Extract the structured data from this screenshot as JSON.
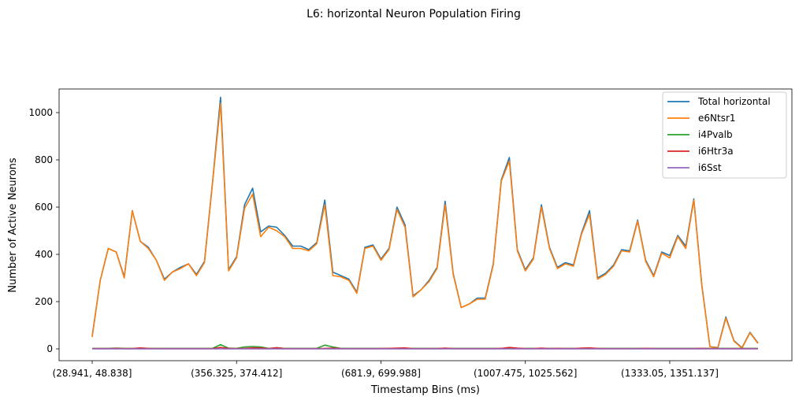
{
  "chart_data": {
    "type": "line",
    "title": "L6: horizontal Neuron Population Firing",
    "xlabel": "Timestamp Bins (ms)",
    "ylabel": "Number of Active Neurons",
    "ylim": [
      -50,
      1100
    ],
    "yticks": [
      0,
      200,
      400,
      600,
      800,
      1000
    ],
    "xtick_labels": [
      {
        "index": 0,
        "label": "(28.941, 48.838]"
      },
      {
        "index": 18,
        "label": "(356.325, 374.412]"
      },
      {
        "index": 36,
        "label": "(681.9, 699.988]"
      },
      {
        "index": 54,
        "label": "(1007.475, 1025.562]"
      },
      {
        "index": 72,
        "label": "(1333.05, 1351.137]"
      }
    ],
    "grid": false,
    "legend_position": "top-right",
    "series": [
      {
        "name": "Total horizontal",
        "color": "#1f77b4",
        "values": [
          55,
          290,
          425,
          410,
          305,
          585,
          455,
          430,
          375,
          295,
          325,
          345,
          360,
          315,
          370,
          705,
          1065,
          335,
          390,
          610,
          680,
          495,
          520,
          515,
          480,
          435,
          435,
          420,
          450,
          630,
          325,
          310,
          295,
          240,
          430,
          440,
          380,
          425,
          600,
          525,
          225,
          250,
          290,
          345,
          625,
          320,
          175,
          190,
          215,
          215,
          360,
          715,
          810,
          420,
          335,
          385,
          610,
          430,
          345,
          365,
          355,
          490,
          585,
          300,
          320,
          355,
          420,
          415,
          545,
          375,
          310,
          410,
          395,
          480,
          435,
          635,
          270,
          10,
          5,
          135,
          35,
          5,
          70,
          25
        ]
      },
      {
        "name": "e6Ntsr1",
        "color": "#ff7f0e",
        "values": [
          50,
          290,
          425,
          410,
          300,
          585,
          455,
          425,
          375,
          290,
          325,
          340,
          360,
          310,
          365,
          700,
          1040,
          330,
          385,
          595,
          655,
          475,
          515,
          500,
          475,
          425,
          425,
          415,
          445,
          610,
          310,
          305,
          290,
          235,
          425,
          435,
          375,
          420,
          590,
          515,
          220,
          250,
          285,
          340,
          610,
          315,
          175,
          190,
          210,
          210,
          355,
          710,
          795,
          415,
          330,
          380,
          600,
          425,
          340,
          360,
          350,
          485,
          570,
          295,
          315,
          350,
          415,
          410,
          540,
          370,
          305,
          405,
          385,
          475,
          425,
          630,
          265,
          10,
          3,
          130,
          33,
          3,
          68,
          23
        ]
      },
      {
        "name": "i4Pvalb",
        "color": "#2ca02c",
        "values": [
          2,
          2,
          2,
          3,
          2,
          2,
          3,
          2,
          2,
          2,
          2,
          2,
          2,
          2,
          2,
          2,
          18,
          3,
          2,
          8,
          10,
          8,
          2,
          5,
          2,
          2,
          2,
          2,
          2,
          16,
          8,
          2,
          2,
          2,
          2,
          2,
          2,
          2,
          2,
          2,
          2,
          2,
          2,
          2,
          2,
          2,
          2,
          2,
          2,
          2,
          2,
          2,
          2,
          2,
          2,
          2,
          2,
          2,
          2,
          2,
          2,
          2,
          2,
          2,
          2,
          2,
          2,
          2,
          2,
          2,
          2,
          2,
          2,
          2,
          2,
          2,
          2,
          2,
          2,
          2,
          2,
          2,
          2,
          2
        ]
      },
      {
        "name": "i6Htr3a",
        "color": "#d62728",
        "values": [
          1,
          1,
          1,
          2,
          1,
          1,
          4,
          2,
          1,
          1,
          1,
          1,
          1,
          1,
          1,
          1,
          6,
          2,
          1,
          2,
          4,
          4,
          1,
          5,
          1,
          1,
          1,
          1,
          1,
          2,
          3,
          1,
          1,
          1,
          1,
          1,
          1,
          2,
          3,
          4,
          1,
          1,
          1,
          1,
          3,
          1,
          1,
          1,
          1,
          1,
          1,
          2,
          6,
          3,
          1,
          1,
          3,
          1,
          2,
          1,
          1,
          3,
          4,
          2,
          1,
          1,
          1,
          1,
          1,
          2,
          1,
          1,
          1,
          1,
          1,
          1,
          2,
          1,
          1,
          1,
          1,
          1,
          1,
          1
        ]
      },
      {
        "name": "i6Sst",
        "color": "#9467bd",
        "values": [
          0,
          0,
          0,
          0,
          0,
          0,
          0,
          0,
          0,
          0,
          0,
          0,
          0,
          0,
          0,
          0,
          0,
          0,
          0,
          0,
          0,
          0,
          0,
          0,
          0,
          0,
          0,
          0,
          0,
          0,
          0,
          0,
          0,
          0,
          0,
          0,
          0,
          0,
          0,
          0,
          0,
          0,
          0,
          0,
          0,
          0,
          0,
          0,
          0,
          0,
          0,
          0,
          0,
          0,
          0,
          0,
          0,
          0,
          0,
          0,
          0,
          0,
          0,
          0,
          0,
          0,
          0,
          0,
          0,
          0,
          0,
          0,
          0,
          0,
          0,
          0,
          0,
          0,
          0,
          0,
          0,
          0,
          0,
          0
        ]
      }
    ]
  }
}
